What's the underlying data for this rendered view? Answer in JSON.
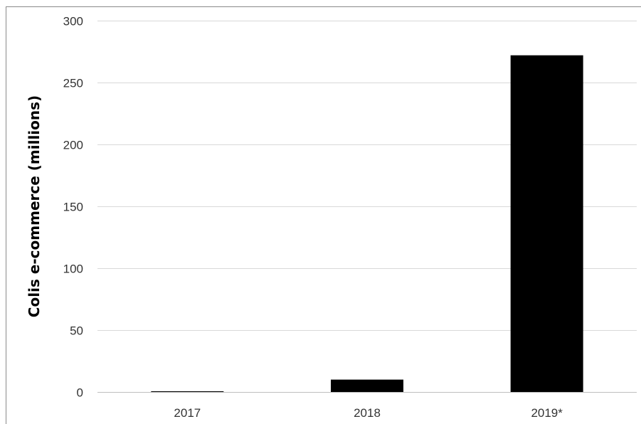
{
  "chart_data": {
    "type": "bar",
    "title": "",
    "xlabel": "",
    "ylabel": "Colis e-commerce (millions)",
    "categories": [
      "2017",
      "2018",
      "2019*"
    ],
    "values": [
      0.5,
      10,
      272
    ],
    "ylim": [
      0,
      300
    ],
    "yticks": [
      0,
      50,
      100,
      150,
      200,
      250,
      300
    ],
    "grid": true,
    "legend": "none",
    "colors": {
      "bar": "#000000",
      "grid": "#d9d9d9",
      "axis": "#bfbfbf"
    }
  }
}
